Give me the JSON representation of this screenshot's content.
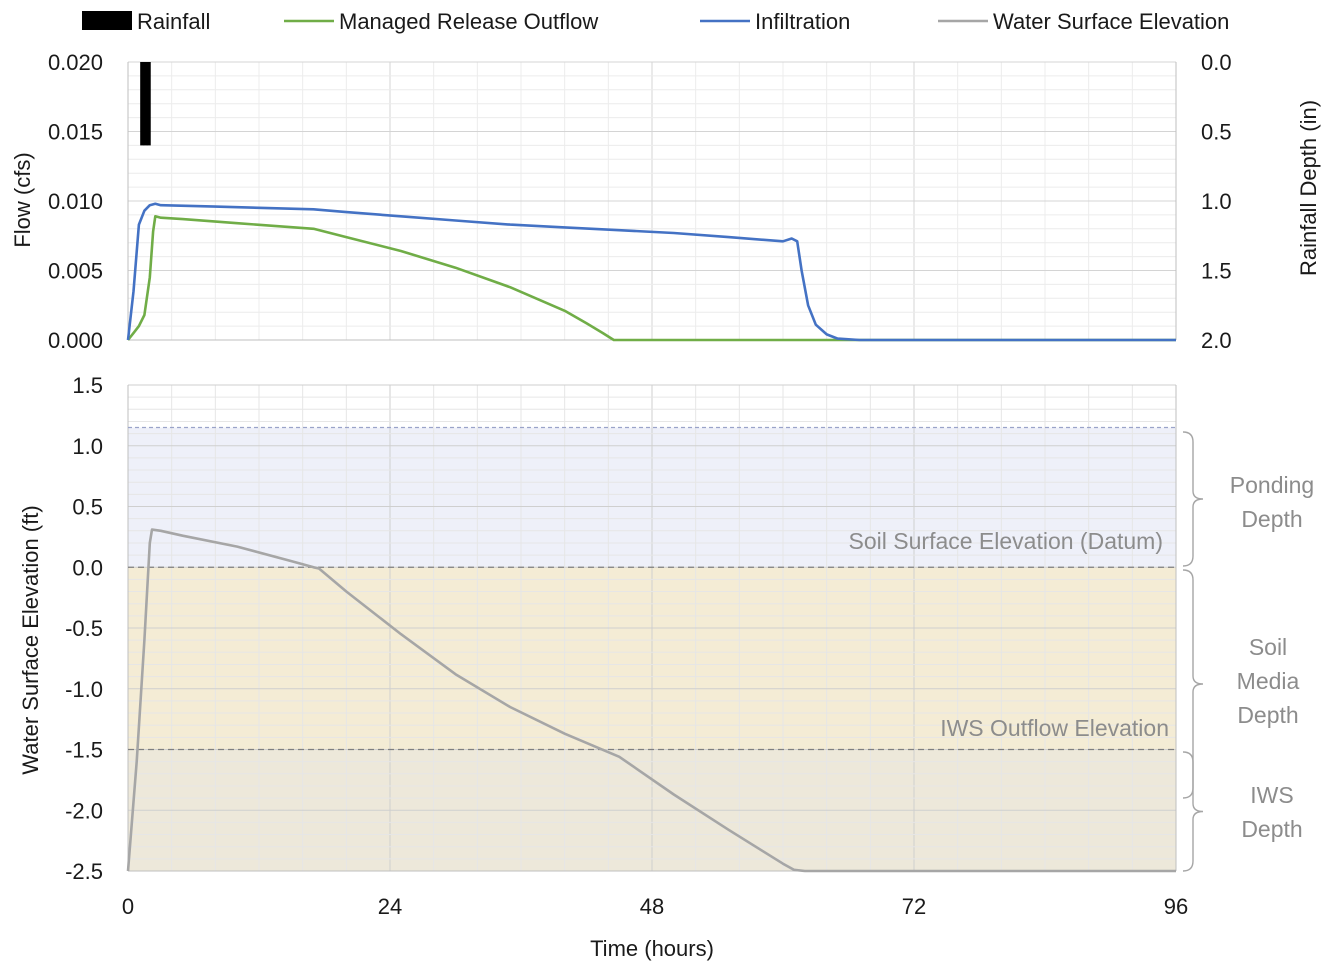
{
  "chart_data": [
    {
      "type": "line",
      "title": "",
      "xlabel": "",
      "ylabel": "Flow (cfs)",
      "y2label": "Rainfall Depth (in)",
      "xlim": [
        0,
        96
      ],
      "ylim": [
        0,
        0.02
      ],
      "y2lim": [
        0,
        2.0
      ],
      "y2_reversed": true,
      "x_ticks": [
        "0",
        "24",
        "48",
        "72",
        "96"
      ],
      "y_ticks": [
        "0.000",
        "0.005",
        "0.010",
        "0.015",
        "0.020"
      ],
      "y2_ticks": [
        "0.0",
        "0.5",
        "1.0",
        "1.5",
        "2.0"
      ],
      "grid": true,
      "legend_position": "top",
      "series": [
        {
          "name": "Rainfall",
          "kind": "bar",
          "axis": "right",
          "color": "#000000",
          "x": [
            1.3,
            1.6,
            1.9
          ],
          "values": [
            0.6,
            0.6,
            0.6
          ]
        },
        {
          "name": "Managed Release Outflow",
          "kind": "line",
          "axis": "left",
          "color": "#70ad47",
          "x": [
            0,
            0.5,
            1,
            1.5,
            2,
            2.3,
            2.5,
            3,
            5,
            10,
            17,
            20,
            25,
            30,
            35,
            40,
            42,
            43.5,
            44.5,
            60,
            96
          ],
          "values": [
            0,
            0.0005,
            0.001,
            0.0018,
            0.0045,
            0.0078,
            0.0089,
            0.0088,
            0.0087,
            0.0084,
            0.008,
            0.0074,
            0.0064,
            0.0052,
            0.0038,
            0.0021,
            0.0012,
            0.0005,
            0.0,
            0.0,
            0.0
          ]
        },
        {
          "name": "Infiltration",
          "kind": "line",
          "axis": "left",
          "color": "#4472c4",
          "x": [
            0,
            0.5,
            1,
            1.5,
            2,
            2.5,
            3,
            8,
            17,
            20,
            25,
            30,
            35,
            40,
            45,
            50,
            55,
            60,
            60.8,
            61.3,
            61.7,
            62.3,
            63,
            64,
            65,
            67,
            70,
            96
          ],
          "values": [
            0,
            0.0035,
            0.0083,
            0.0093,
            0.0097,
            0.0098,
            0.0097,
            0.0096,
            0.0094,
            0.0092,
            0.0089,
            0.0086,
            0.0083,
            0.0081,
            0.0079,
            0.0077,
            0.0074,
            0.0071,
            0.0073,
            0.0071,
            0.005,
            0.0025,
            0.0011,
            0.0004,
            0.0001,
            0.0,
            0.0,
            0.0
          ]
        }
      ]
    },
    {
      "type": "line",
      "title": "",
      "xlabel": "Time (hours)",
      "ylabel": "Water Surface Elevation (ft)",
      "xlim": [
        0,
        96
      ],
      "ylim": [
        -2.5,
        1.5
      ],
      "x_ticks": [
        "0",
        "24",
        "48",
        "72",
        "96"
      ],
      "y_ticks": [
        "-2.5",
        "-2.0",
        "-1.5",
        "-1.0",
        "-0.5",
        "0.0",
        "0.5",
        "1.0",
        "1.5"
      ],
      "grid": true,
      "series": [
        {
          "name": "Water Surface Elevation",
          "color": "#a6a6a6",
          "x": [
            0,
            0.8,
            1.5,
            2.0,
            2.2,
            3,
            5,
            10,
            15,
            17,
            17.5,
            20,
            25,
            30,
            35,
            40,
            45,
            50,
            55,
            60,
            61,
            62,
            70,
            96
          ],
          "values": [
            -2.5,
            -1.6,
            -0.6,
            0.2,
            0.31,
            0.3,
            0.26,
            0.17,
            0.05,
            0.0,
            -0.01,
            -0.2,
            -0.55,
            -0.88,
            -1.15,
            -1.37,
            -1.56,
            -1.87,
            -2.16,
            -2.44,
            -2.49,
            -2.5,
            -2.5,
            -2.5
          ]
        }
      ],
      "zones": {
        "ponding_top": 1.15,
        "soil_surface": 0.0,
        "iws_outflow": -1.5,
        "bottom": -2.5,
        "colors": {
          "ponding": "#eef0f9",
          "soil_media": "#f4ecd5",
          "iws": "#ede8da"
        }
      },
      "annotations": {
        "soil_surface_label": "Soil Surface Elevation (Datum)",
        "iws_outflow_label": "IWS Outflow Elevation"
      },
      "zone_labels": {
        "ponding": [
          "Ponding",
          "Depth"
        ],
        "soil_media": [
          "Soil",
          "Media",
          "Depth"
        ],
        "iws": [
          "IWS",
          "Depth"
        ]
      }
    }
  ],
  "legend": [
    {
      "label": "Rainfall",
      "symbol": "bar",
      "color": "#000000"
    },
    {
      "label": "Managed Release Outflow",
      "symbol": "line",
      "color": "#70ad47"
    },
    {
      "label": "Infiltration",
      "symbol": "line",
      "color": "#4472c4"
    },
    {
      "label": "Water Surface Elevation",
      "symbol": "line",
      "color": "#a6a6a6"
    }
  ]
}
